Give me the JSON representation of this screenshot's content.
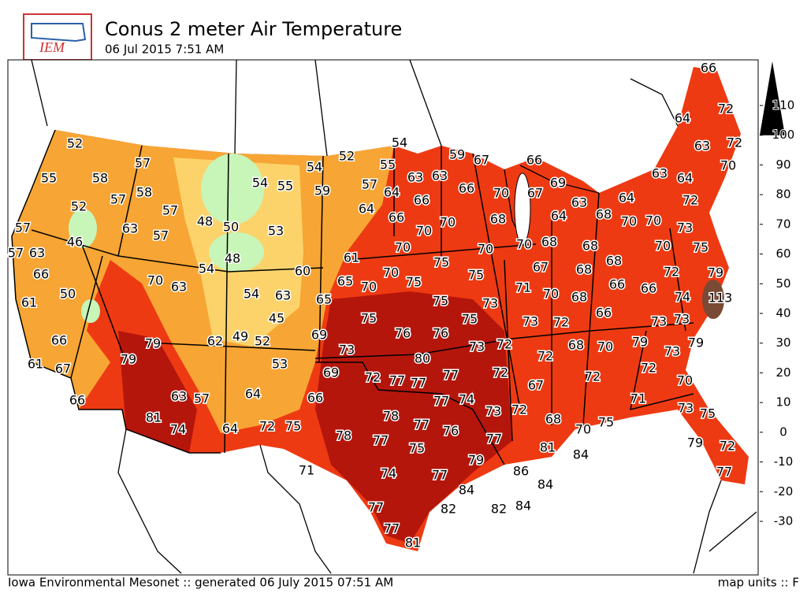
{
  "logo": "IEM",
  "header": {
    "title": "Conus 2 meter Air Temperature",
    "subtitle": "06 Jul 2015 7:51 AM"
  },
  "footer": {
    "left": "Iowa Environmental Mesonet :: generated 06 July 2015 07:51 AM",
    "right": "map units :: F"
  },
  "colorbar": {
    "ticks": [
      110,
      100,
      90,
      80,
      70,
      60,
      50,
      40,
      30,
      20,
      10,
      0,
      -10,
      -20,
      -30
    ]
  },
  "stations": {
    "values": [
      66,
      72,
      64,
      63,
      72,
      70,
      52,
      54,
      59,
      67,
      66,
      52,
      54,
      55,
      57,
      55,
      58,
      57,
      58,
      54,
      55,
      59,
      57,
      63,
      63,
      66,
      70,
      67,
      69,
      63,
      64,
      68,
      64,
      63,
      64,
      72,
      70,
      70,
      73,
      75,
      52,
      57,
      48,
      50,
      53,
      64,
      64,
      66,
      66,
      70,
      70,
      68,
      70,
      68,
      68,
      68,
      70,
      72,
      79,
      113,
      57,
      46,
      57,
      63,
      63,
      57,
      48,
      54,
      61,
      60,
      70,
      75,
      70,
      75,
      67,
      68,
      66,
      66,
      74,
      66,
      50,
      61,
      70,
      63,
      65,
      70,
      70,
      75,
      75,
      73,
      71,
      70,
      68,
      66,
      73,
      73,
      54,
      63,
      65,
      45,
      75,
      76,
      76,
      75,
      73,
      72,
      79,
      66,
      79,
      62,
      49,
      52,
      69,
      73,
      80,
      73,
      72,
      68,
      70,
      79,
      73,
      61,
      67,
      79,
      53,
      69,
      72,
      77,
      77,
      77,
      72,
      72,
      72,
      72,
      70,
      66,
      63,
      57,
      64,
      66,
      77,
      74,
      73,
      72,
      67,
      71,
      73,
      75,
      81,
      74,
      64,
      72,
      75,
      78,
      77,
      76,
      68,
      70,
      75,
      78,
      77,
      75,
      77,
      81,
      84,
      79,
      72,
      79,
      86,
      84,
      71,
      74,
      77,
      84,
      82,
      84,
      82,
      77,
      77,
      77,
      81
    ]
  }
}
